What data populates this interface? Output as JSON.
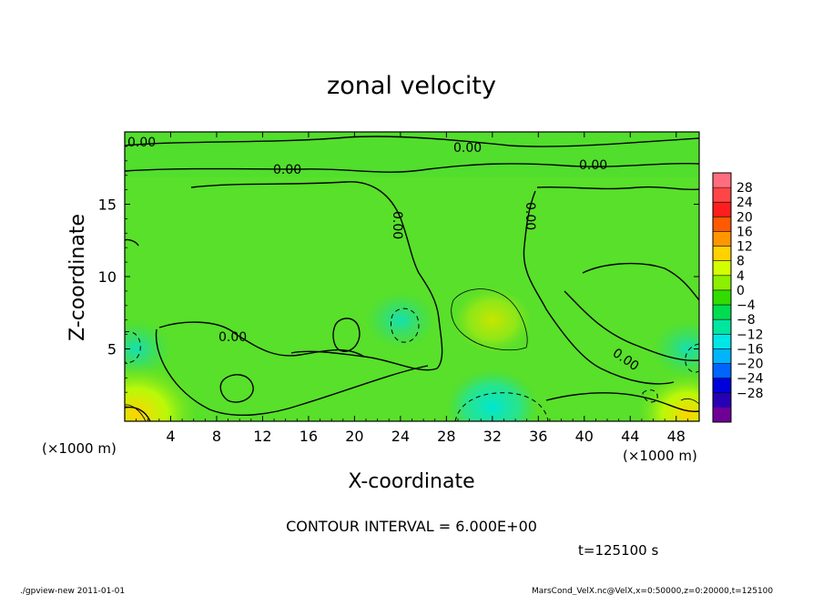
{
  "chart_data": {
    "type": "heatmap",
    "title": "zonal velocity",
    "xlabel": "X-coordinate",
    "ylabel": "Z-coordinate",
    "x_scale_note": "(×1000 m)",
    "y_scale_note": "(×1000 m)",
    "xlim": [
      0,
      50
    ],
    "ylim": [
      0,
      20
    ],
    "x_ticks": [
      4,
      8,
      12,
      16,
      20,
      24,
      28,
      32,
      36,
      40,
      44,
      48
    ],
    "y_ticks": [
      5,
      10,
      15
    ],
    "grid": false,
    "contour_interval_label": "CONTOUR INTERVAL = 6.000E+00",
    "contour_labels": [
      "0.00"
    ],
    "time_label": "t=125100 s",
    "colorbar": {
      "position": "right",
      "labels": [
        "28",
        "24",
        "20",
        "16",
        "12",
        "8",
        "4",
        "0",
        "−4",
        "−8",
        "−12",
        "−16",
        "−20",
        "−24",
        "−28"
      ],
      "colors": [
        "#ff6e7e",
        "#ff4646",
        "#ff1e1e",
        "#ff5a00",
        "#ff9600",
        "#ffd200",
        "#d2ff00",
        "#8cf000",
        "#32dc00",
        "#00dc50",
        "#00e6a0",
        "#00e6e6",
        "#00b4ff",
        "#0064ff",
        "#0000dc",
        "#2800b4",
        "#6e0096"
      ]
    },
    "features": [
      {
        "x": 32,
        "z": 7,
        "value": 6,
        "sign": "positive"
      },
      {
        "x": 32,
        "z": 1,
        "value": -7,
        "sign": "negative"
      },
      {
        "x": 24,
        "z": 7,
        "value": -5,
        "sign": "negative"
      },
      {
        "x": 1,
        "z": 5,
        "value": -5,
        "sign": "negative"
      },
      {
        "x": 49,
        "z": 5,
        "value": -5,
        "sign": "negative"
      },
      {
        "x": 1,
        "z": 0.5,
        "value": 10,
        "sign": "positive"
      },
      {
        "x": 49,
        "z": 0.5,
        "value": 8,
        "sign": "positive"
      }
    ]
  },
  "footer": {
    "left": "./gpview-new  2011-01-01",
    "right": "MarsCond_VelX.nc@VelX,x=0:50000,z=0:20000,t=125100"
  }
}
